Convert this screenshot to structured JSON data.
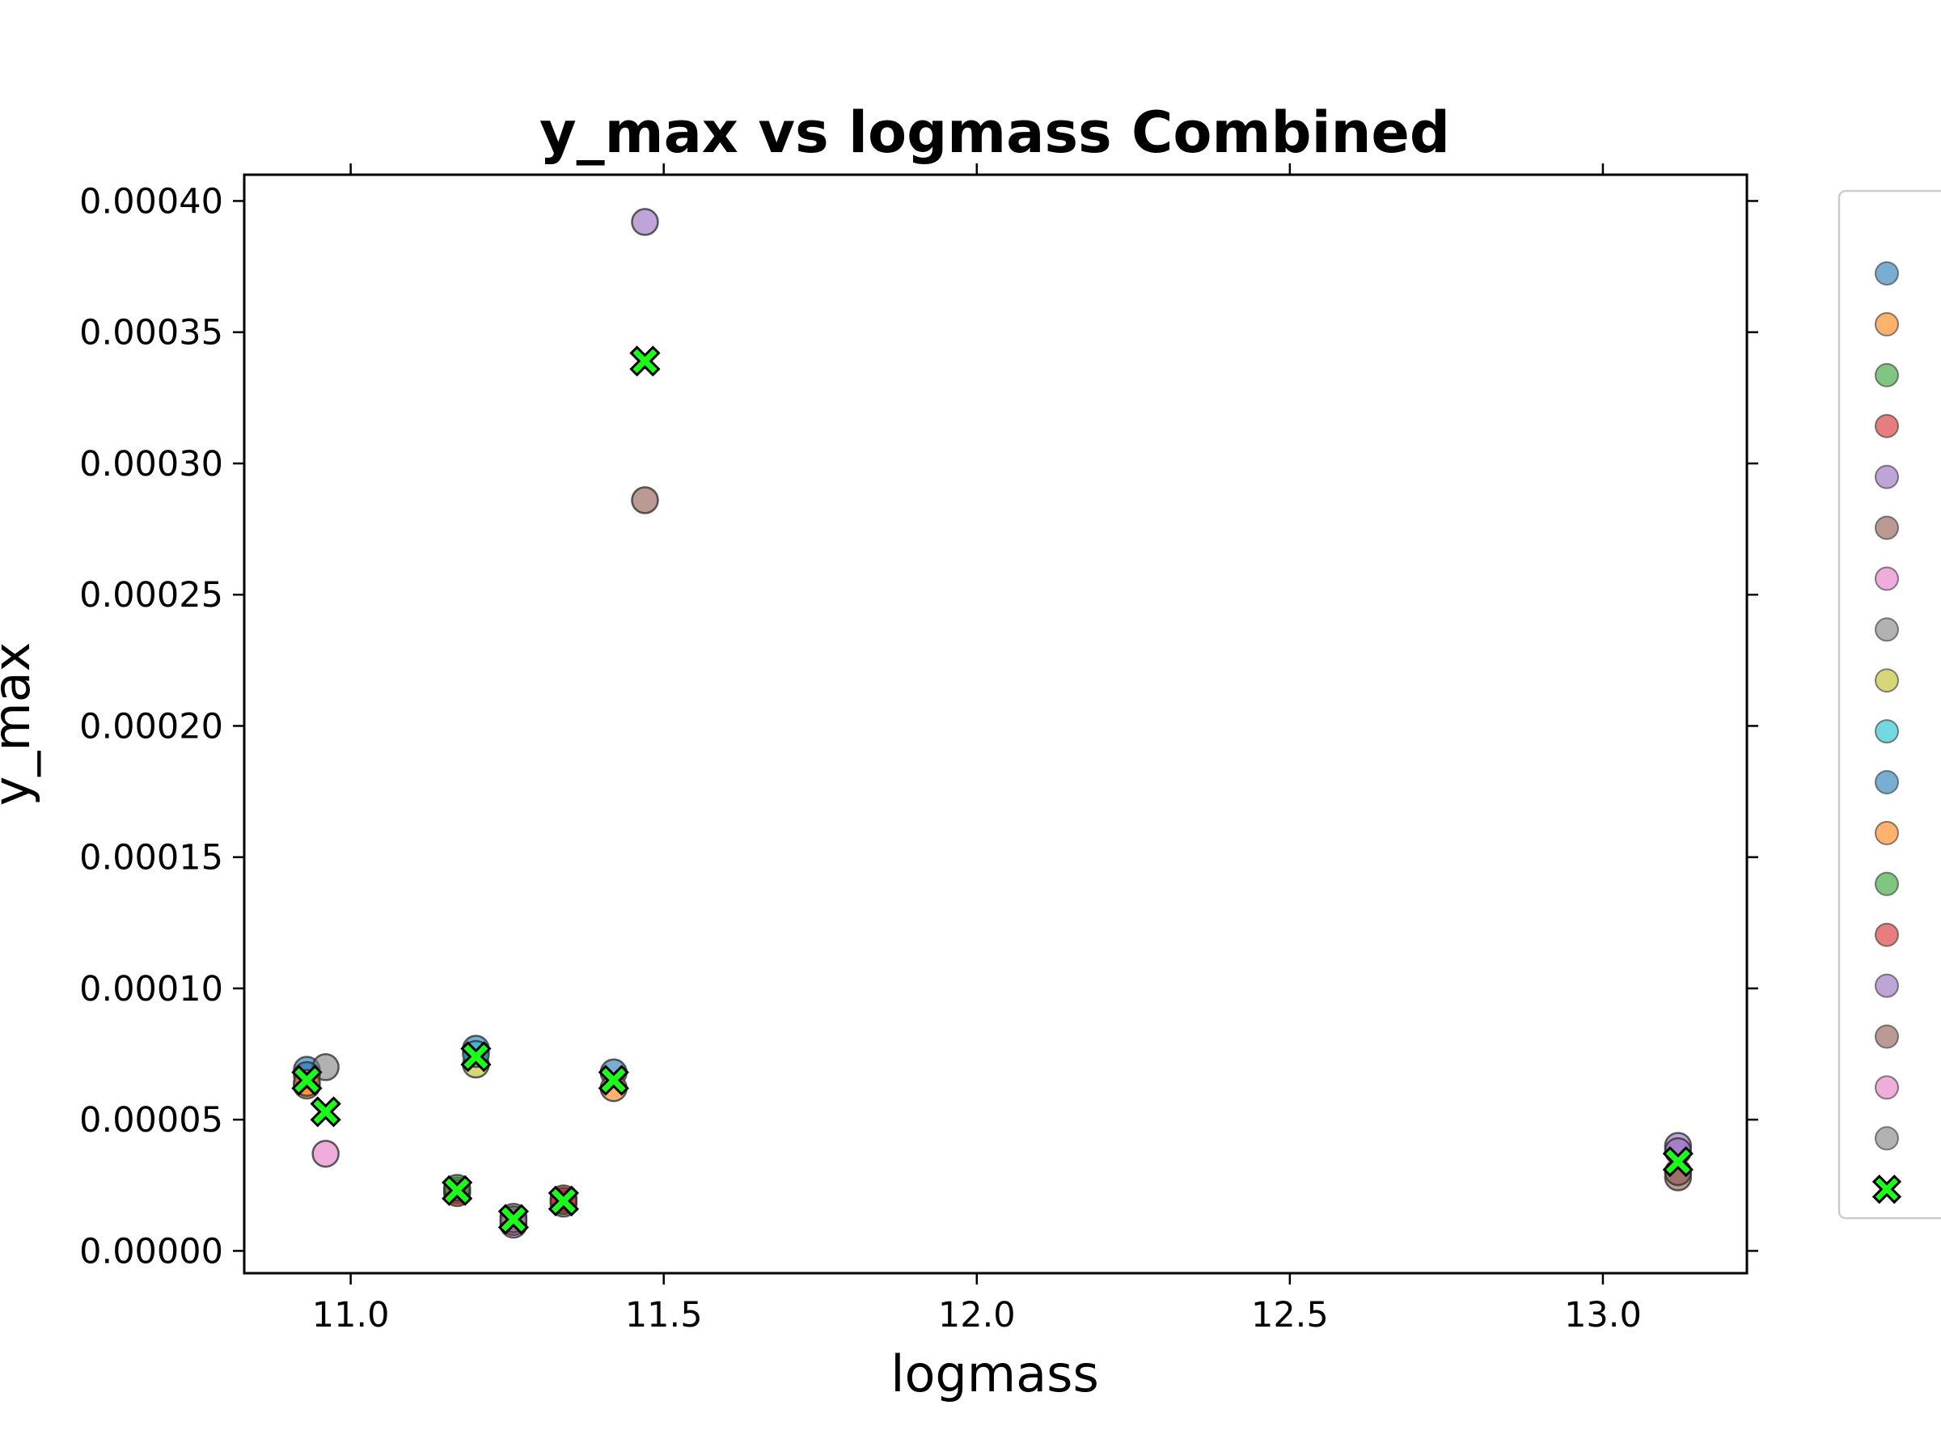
{
  "chart_data": {
    "type": "scatter",
    "title": "y_max vs logmass Combined",
    "xlabel": "logmass",
    "ylabel": "y_max",
    "xlim": [
      10.83,
      13.23
    ],
    "ylim": [
      -8.5e-06,
      0.00041
    ],
    "xticks": [
      "11.0",
      "11.5",
      "12.0",
      "12.5",
      "13.0"
    ],
    "xtick_values": [
      11.0,
      11.5,
      12.0,
      12.5,
      13.0
    ],
    "yticks": [
      "0.00000",
      "0.00005",
      "0.00010",
      "0.00015",
      "0.00020",
      "0.00025",
      "0.00030",
      "0.00035",
      "0.00040"
    ],
    "ytick_values": [
      0.0,
      5e-05,
      0.0001,
      0.00015,
      0.0002,
      0.00025,
      0.0003,
      0.00035,
      0.0004
    ],
    "grid": false,
    "legend_position": "right, outside, partially cropped",
    "colors": [
      "#1f77b4",
      "#ff7f0e",
      "#2ca02c",
      "#d62728",
      "#9467bd",
      "#8c564b",
      "#e377c2",
      "#7f7f7f",
      "#bcbd22",
      "#17becf",
      "#1f77b4",
      "#ff7f0e",
      "#2ca02c",
      "#d62728",
      "#9467bd",
      "#8c564b",
      "#e377c2",
      "#7f7f7f"
    ],
    "mean_marker_color": "#1aff1a",
    "series": [
      {
        "points": [
          [
            10.93,
            6.9e-05
          ],
          [
            11.2,
            7.7e-05
          ],
          [
            11.42,
            6.8e-05
          ]
        ]
      },
      {
        "points": [
          [
            10.93,
            6.3e-05
          ],
          [
            11.42,
            6.2e-05
          ]
        ]
      },
      {
        "points": [
          [
            11.17,
            2.3e-05
          ],
          [
            11.34,
            1.8e-05
          ]
        ]
      },
      {
        "points": [
          [
            11.17,
            2.2e-05
          ],
          [
            11.34,
            2e-05
          ]
        ]
      },
      {
        "points": [
          [
            11.47,
            0.000392
          ],
          [
            13.12,
            4e-05
          ]
        ]
      },
      {
        "points": [
          [
            11.47,
            0.000286
          ],
          [
            13.12,
            2.8e-05
          ]
        ]
      },
      {
        "points": [
          [
            10.96,
            3.7e-05
          ],
          [
            11.26,
            1e-05
          ]
        ]
      },
      {
        "points": [
          [
            10.96,
            7e-05
          ],
          [
            11.26,
            1.3e-05
          ]
        ]
      },
      {
        "points": [
          [
            11.2,
            7.1e-05
          ]
        ]
      },
      {
        "points": [
          [
            11.2,
            7.5e-05
          ]
        ]
      },
      {
        "points": [
          [
            10.93,
            6.7e-05
          ]
        ]
      },
      {
        "points": [
          [
            10.93,
            6.4e-05
          ]
        ]
      },
      {
        "points": [
          [
            11.17,
            2.4e-05
          ]
        ]
      },
      {
        "points": [
          [
            11.34,
            1.9e-05
          ]
        ]
      },
      {
        "points": [
          [
            13.12,
            3.8e-05
          ]
        ]
      },
      {
        "points": [
          [
            13.12,
            3e-05
          ]
        ]
      },
      {
        "points": [
          [
            11.26,
            1.1e-05
          ]
        ]
      },
      {
        "points": [
          [
            11.26,
            1.2e-05
          ]
        ]
      }
    ],
    "mean_points": [
      [
        10.93,
        6.5e-05
      ],
      [
        10.96,
        5.3e-05
      ],
      [
        11.2,
        7.4e-05
      ],
      [
        11.17,
        2.3e-05
      ],
      [
        11.26,
        1.2e-05
      ],
      [
        11.34,
        1.9e-05
      ],
      [
        11.42,
        6.5e-05
      ],
      [
        11.47,
        0.000339
      ],
      [
        13.12,
        3.4e-05
      ]
    ]
  }
}
